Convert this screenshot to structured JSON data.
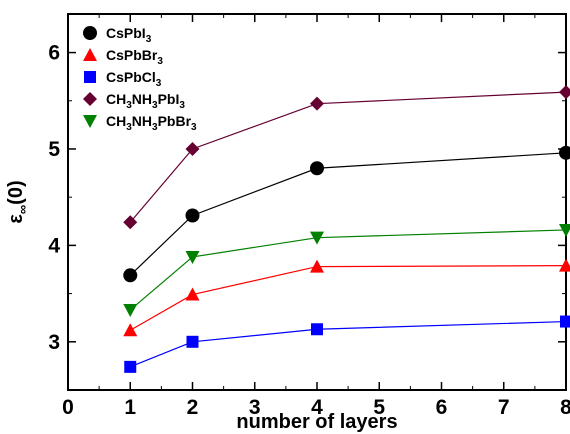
{
  "chart_data": {
    "type": "line",
    "xlabel": "number of layers",
    "ylabel": {
      "main": "ε",
      "sub": "∞",
      "tail": "(0)"
    },
    "xlim": [
      0,
      8
    ],
    "ylim": [
      2.5,
      6.4
    ],
    "x_ticks": [
      0,
      1,
      2,
      3,
      4,
      5,
      6,
      7,
      8
    ],
    "y_ticks": [
      3,
      4,
      5,
      6
    ],
    "grid": false,
    "legend_position": "top-left",
    "series": [
      {
        "key": "cspbi3",
        "name": "CsPbI3",
        "parts": [
          [
            "CsPbI",
            ""
          ],
          [
            "3",
            "sub"
          ]
        ],
        "color": "#000000",
        "marker": "circle",
        "x": [
          1,
          2,
          4,
          8
        ],
        "y": [
          3.69,
          4.31,
          4.8,
          4.96
        ]
      },
      {
        "key": "cspbbr3",
        "name": "CsPbBr3",
        "parts": [
          [
            "CsPbBr",
            ""
          ],
          [
            "3",
            "sub"
          ]
        ],
        "color": "#ff0000",
        "marker": "triangle-up",
        "x": [
          1,
          2,
          4,
          8
        ],
        "y": [
          3.12,
          3.49,
          3.78,
          3.79
        ]
      },
      {
        "key": "cspbcl3",
        "name": "CsPbCl3",
        "parts": [
          [
            "CsPbCl",
            ""
          ],
          [
            "3",
            "sub"
          ]
        ],
        "color": "#0000ff",
        "marker": "square",
        "x": [
          1,
          2,
          4,
          8
        ],
        "y": [
          2.74,
          3.0,
          3.13,
          3.21
        ]
      },
      {
        "key": "ch3nh3pbi3",
        "name": "CH3NH3PbI3",
        "parts": [
          [
            "CH",
            ""
          ],
          [
            "3",
            "sub"
          ],
          [
            "NH",
            ""
          ],
          [
            "3",
            "sub"
          ],
          [
            "PbI",
            ""
          ],
          [
            "3",
            "sub"
          ]
        ],
        "color": "#660033",
        "marker": "diamond",
        "x": [
          1,
          2,
          4,
          8
        ],
        "y": [
          4.24,
          5.0,
          5.47,
          5.59
        ]
      },
      {
        "key": "ch3nh3pbbr3",
        "name": "CH3NH3PbBr3",
        "parts": [
          [
            "CH",
            ""
          ],
          [
            "3",
            "sub"
          ],
          [
            "NH",
            ""
          ],
          [
            "3",
            "sub"
          ],
          [
            "PbBr",
            ""
          ],
          [
            "3",
            "sub"
          ]
        ],
        "color": "#008000",
        "marker": "triangle-down",
        "x": [
          1,
          2,
          4,
          8
        ],
        "y": [
          3.33,
          3.88,
          4.08,
          4.16
        ]
      }
    ]
  }
}
